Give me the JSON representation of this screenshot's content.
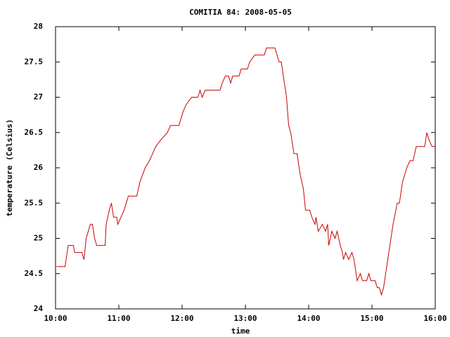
{
  "chart_data": {
    "type": "line",
    "title": "COMITIA 84: 2008-05-05",
    "x_label": "time",
    "y_label": "temperature (Celsius)",
    "x": [
      "10:01",
      "10:09",
      "10:12",
      "10:17",
      "10:18",
      "10:25",
      "10:27",
      "10:29",
      "10:33",
      "10:35",
      "10:37",
      "10:39",
      "10:47",
      "10:48",
      "10:51",
      "10:53",
      "10:55",
      "10:58",
      "10:59",
      "11:02",
      "11:05",
      "11:07",
      "11:09",
      "11:17",
      "11:20",
      "11:25",
      "11:29",
      "11:35",
      "11:40",
      "11:46",
      "11:49",
      "11:57",
      "11:59",
      "12:01",
      "12:04",
      "12:09",
      "12:15",
      "12:17",
      "12:19",
      "12:22",
      "12:36",
      "12:38",
      "12:41",
      "12:44",
      "12:46",
      "12:48",
      "12:54",
      "12:56",
      "13:02",
      "13:04",
      "13:09",
      "13:18",
      "13:20",
      "13:28",
      "13:30",
      "13:32",
      "13:34",
      "13:37",
      "13:39",
      "13:41",
      "13:43",
      "13:46",
      "13:49",
      "13:52",
      "13:55",
      "13:57",
      "14:01",
      "14:03",
      "14:06",
      "14:07",
      "14:09",
      "14:13",
      "14:16",
      "14:18",
      "14:19",
      "14:22",
      "14:25",
      "14:27",
      "14:30",
      "14:32",
      "14:33",
      "14:35",
      "14:38",
      "14:41",
      "14:43",
      "14:46",
      "14:49",
      "14:51",
      "14:55",
      "14:57",
      "14:59",
      "15:03",
      "15:05",
      "15:07",
      "15:09",
      "15:11",
      "15:16",
      "15:20",
      "15:24",
      "15:26",
      "15:29",
      "15:33",
      "15:36",
      "15:39",
      "15:42",
      "15:50",
      "15:52",
      "15:54",
      "15:57",
      "16:00"
    ],
    "series": [
      {
        "name": "temperature",
        "color": "#cc0000",
        "values": [
          24.6,
          24.6,
          24.9,
          24.9,
          24.8,
          24.8,
          24.7,
          25.0,
          25.2,
          25.2,
          25.0,
          24.9,
          24.9,
          25.2,
          25.4,
          25.5,
          25.3,
          25.3,
          25.2,
          25.3,
          25.4,
          25.5,
          25.6,
          25.6,
          25.8,
          26.0,
          26.1,
          26.3,
          26.4,
          26.5,
          26.6,
          26.6,
          26.7,
          26.8,
          26.9,
          27.0,
          27.0,
          27.1,
          27.0,
          27.1,
          27.1,
          27.2,
          27.3,
          27.3,
          27.2,
          27.3,
          27.3,
          27.4,
          27.4,
          27.5,
          27.6,
          27.6,
          27.7,
          27.7,
          27.6,
          27.5,
          27.5,
          27.2,
          27.0,
          26.6,
          26.5,
          26.2,
          26.2,
          25.9,
          25.7,
          25.4,
          25.4,
          25.3,
          25.2,
          25.3,
          25.1,
          25.2,
          25.1,
          25.2,
          24.9,
          25.1,
          25.0,
          25.1,
          24.9,
          24.8,
          24.7,
          24.8,
          24.7,
          24.8,
          24.7,
          24.4,
          24.5,
          24.4,
          24.4,
          24.5,
          24.4,
          24.4,
          24.3,
          24.3,
          24.2,
          24.3,
          24.8,
          25.2,
          25.5,
          25.5,
          25.8,
          26.0,
          26.1,
          26.1,
          26.3,
          26.3,
          26.5,
          26.4,
          26.3,
          26.3
        ]
      }
    ],
    "xlim": [
      "10:00",
      "16:00"
    ],
    "xticks": [
      "10:00",
      "11:00",
      "12:00",
      "13:00",
      "14:00",
      "15:00",
      "16:00"
    ],
    "ylim": [
      24,
      28
    ],
    "yticks": [
      24,
      24.5,
      25,
      25.5,
      26,
      26.5,
      27,
      27.5,
      28
    ],
    "grid": false
  }
}
